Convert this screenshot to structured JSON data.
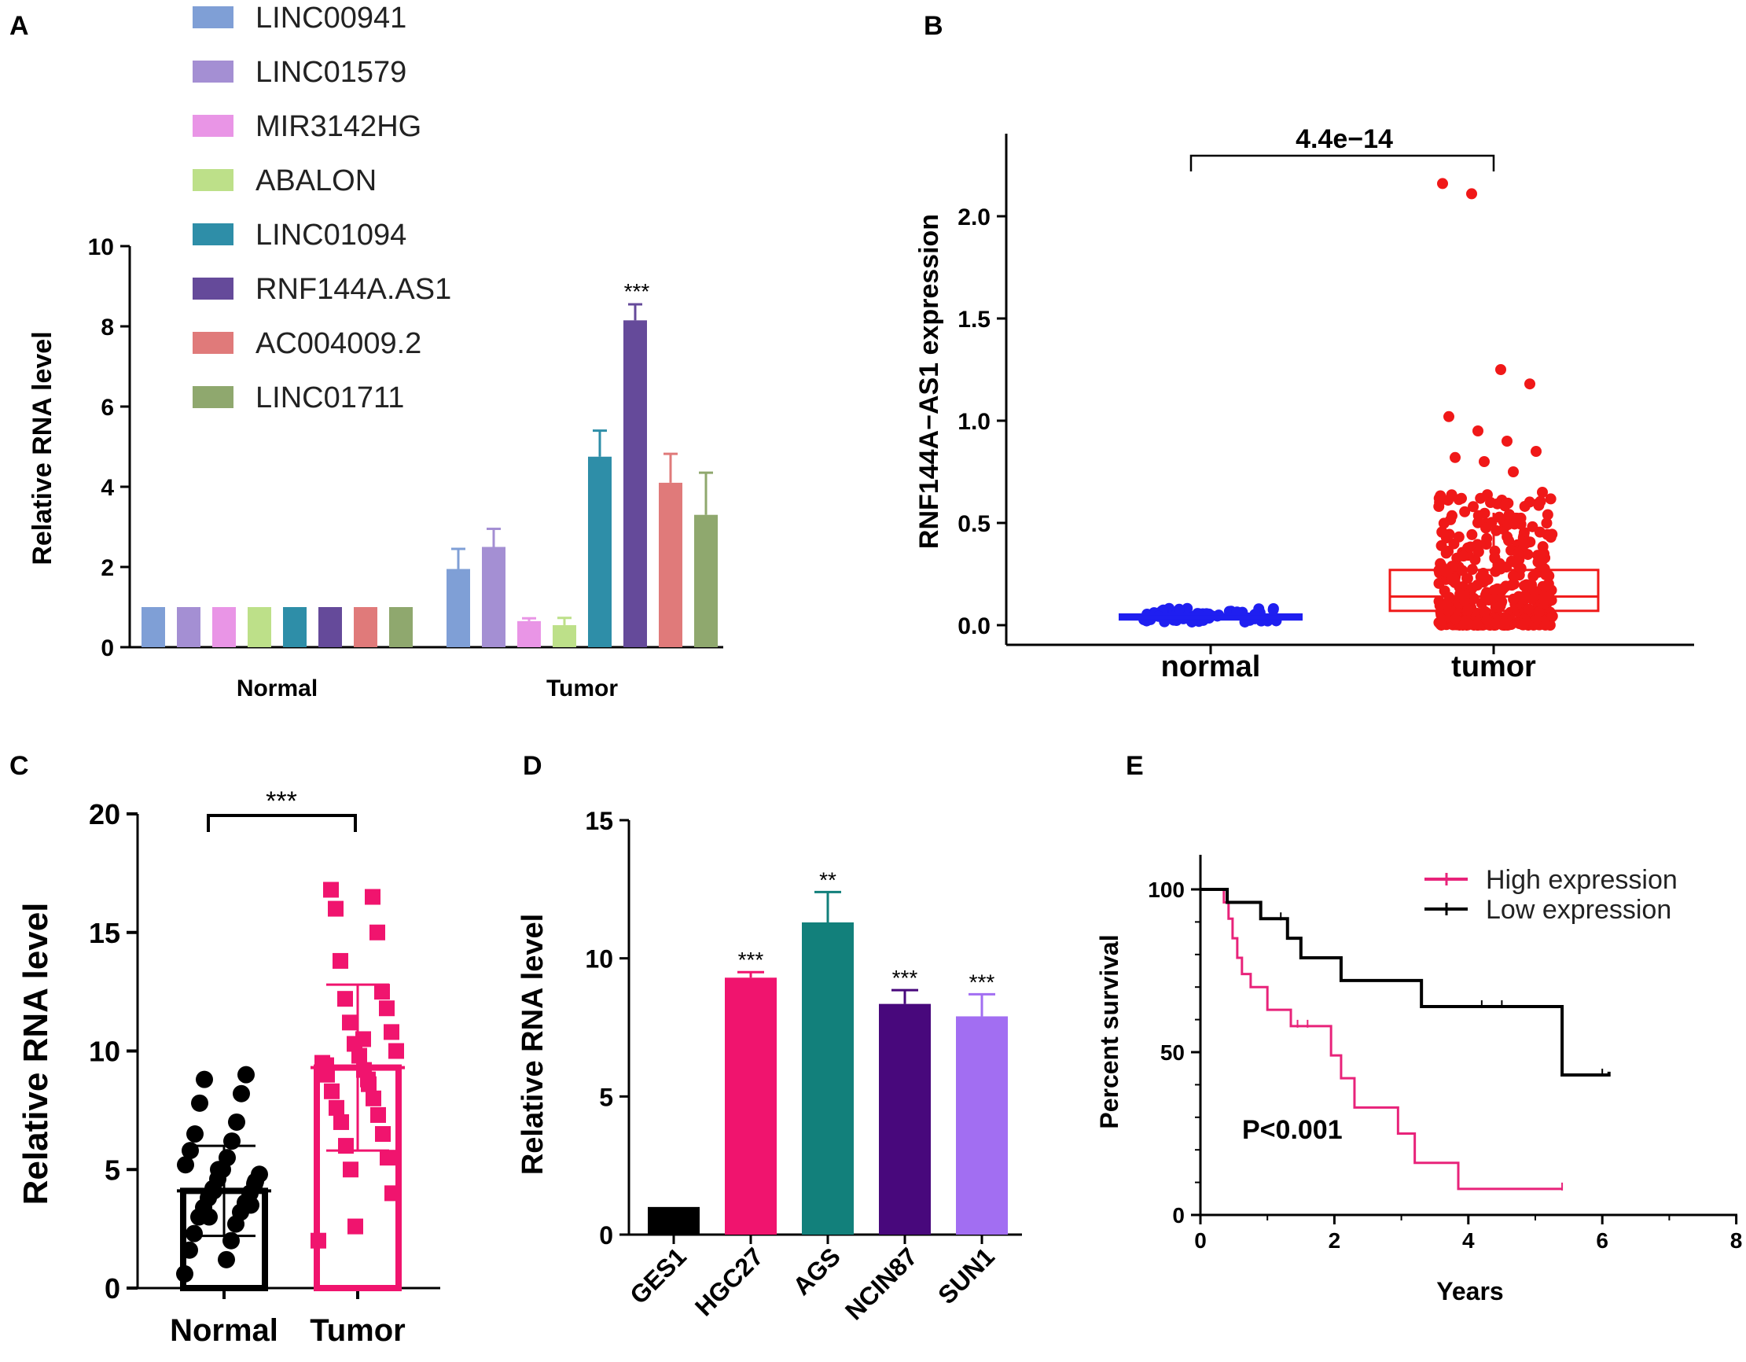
{
  "chart_data": [
    {
      "panel": "A",
      "type": "bar",
      "ylabel": "Relative RNA level",
      "ylim": [
        0,
        10
      ],
      "yticks": [
        "0",
        "2",
        "4",
        "6",
        "8",
        "10"
      ],
      "groups": [
        "Normal",
        "Tumor"
      ],
      "series": [
        {
          "name": "LINC00941",
          "color": "#7f9fd6",
          "values": [
            1,
            1.95
          ],
          "errors": [
            0,
            0.5
          ]
        },
        {
          "name": "LINC01579",
          "color": "#a48fd3",
          "values": [
            1,
            2.5
          ],
          "errors": [
            0,
            0.45
          ]
        },
        {
          "name": "MIR3142HG",
          "color": "#e995e6",
          "values": [
            1,
            0.65
          ],
          "errors": [
            0,
            0.07
          ]
        },
        {
          "name": "ABALON",
          "color": "#bde089",
          "values": [
            1,
            0.55
          ],
          "errors": [
            0,
            0.18
          ]
        },
        {
          "name": "LINC01094",
          "color": "#2e8ea8",
          "values": [
            1,
            4.75
          ],
          "errors": [
            0,
            0.65
          ]
        },
        {
          "name": "RNF144A.AS1",
          "color": "#654a9a",
          "values": [
            1,
            8.15
          ],
          "errors": [
            0,
            0.4
          ]
        },
        {
          "name": "AC004009.2",
          "color": "#e07a7a",
          "values": [
            1,
            4.1
          ],
          "errors": [
            0,
            0.72
          ]
        },
        {
          "name": "LINC01711",
          "color": "#8fa86e",
          "values": [
            1,
            3.3
          ],
          "errors": [
            0,
            1.05
          ]
        }
      ],
      "annotation": "***"
    },
    {
      "panel": "B",
      "type": "box",
      "ylabel": "RNF144A−AS1 expression",
      "ylim": [
        0,
        2.3
      ],
      "yticks": [
        "0.0",
        "0.5",
        "1.0",
        "1.5",
        "2.0"
      ],
      "categories": [
        "normal",
        "tumor"
      ],
      "colors": [
        "#1f1ff0",
        "#f01818"
      ],
      "normal_box": {
        "q1": 0.03,
        "median": 0.04,
        "q3": 0.05
      },
      "tumor_box": {
        "q1": 0.07,
        "median": 0.14,
        "q3": 0.27
      },
      "normal_points": [
        0.02,
        0.03,
        0.04,
        0.05,
        0.06,
        0.07,
        0.08,
        0.09,
        0.05,
        0.04
      ],
      "tumor_outliers": [
        2.16,
        2.11,
        1.25,
        1.18,
        1.02,
        0.95,
        0.9,
        0.85,
        0.82,
        0.8,
        0.75,
        0.65,
        0.62,
        0.6
      ],
      "pvalue": "4.4e−14"
    },
    {
      "panel": "C",
      "type": "bar",
      "ylabel": "Relative RNA level",
      "ylim": [
        0,
        20
      ],
      "yticks": [
        "0",
        "5",
        "10",
        "15",
        "20"
      ],
      "categories": [
        "Normal",
        "Tumor"
      ],
      "values": [
        4.1,
        9.3
      ],
      "errors": [
        1.9,
        3.5
      ],
      "colors": [
        "#000000",
        "#f0146e"
      ],
      "normal_points": [
        0.6,
        1.2,
        1.6,
        2.0,
        2.3,
        2.7,
        3.0,
        3.2,
        3.4,
        3.6,
        3.8,
        4.0,
        4.2,
        4.4,
        4.6,
        4.8,
        5.0,
        5.2,
        5.5,
        5.8,
        6.2,
        6.5,
        7.0,
        7.8,
        8.2,
        8.8,
        9.0,
        3.0,
        3.5,
        4.1,
        4.5,
        5.0
      ],
      "tumor_points": [
        2.0,
        2.6,
        4.0,
        5.0,
        5.5,
        6.0,
        6.5,
        7.0,
        7.3,
        7.6,
        8.0,
        8.3,
        8.6,
        9.0,
        9.2,
        9.5,
        9.8,
        10.0,
        10.3,
        10.8,
        11.2,
        11.8,
        12.2,
        12.5,
        13.8,
        15.0,
        16.0,
        16.5,
        16.8,
        8.8,
        9.4,
        10.5
      ],
      "annotation": "***"
    },
    {
      "panel": "D",
      "type": "bar",
      "ylabel": "Relative RNA level",
      "ylim": [
        0,
        15
      ],
      "yticks": [
        "0",
        "5",
        "10",
        "15"
      ],
      "categories": [
        "GES1",
        "HGC27",
        "AGS",
        "NCIN87",
        "SUN1"
      ],
      "values": [
        1.0,
        9.3,
        11.3,
        8.35,
        7.9
      ],
      "errors": [
        0,
        0.2,
        1.1,
        0.5,
        0.8
      ],
      "colors": [
        "#000000",
        "#f0146e",
        "#12807b",
        "#48087c",
        "#a26ef2"
      ],
      "annotations": [
        "",
        "***",
        "**",
        "***",
        "***"
      ]
    },
    {
      "panel": "E",
      "type": "line",
      "xlabel": "Years",
      "ylabel": "Percent survival",
      "xlim": [
        0,
        8
      ],
      "ylim": [
        0,
        110
      ],
      "xticks": [
        "0",
        "2",
        "4",
        "6",
        "8"
      ],
      "yticks": [
        "0",
        "50",
        "100"
      ],
      "series": [
        {
          "name": "High expression",
          "color": "#e8237a",
          "x": [
            0,
            0.35,
            0.42,
            0.48,
            0.55,
            0.62,
            0.75,
            1.0,
            1.35,
            1.5,
            1.95,
            2.1,
            2.3,
            2.95,
            3.2,
            3.85,
            5.4
          ],
          "y": [
            100,
            96,
            91,
            85,
            79,
            74,
            70,
            63,
            58,
            58,
            49,
            42,
            33,
            25,
            16,
            8,
            8
          ]
        },
        {
          "name": "Low expression",
          "color": "#000000",
          "x": [
            0,
            0.4,
            0.9,
            1.3,
            1.5,
            2.1,
            3.3,
            5.4,
            5.7,
            6.1
          ],
          "y": [
            100,
            96,
            91,
            85,
            79,
            72,
            64,
            43,
            43,
            44
          ]
        }
      ],
      "annotation": "P<0.001"
    }
  ]
}
